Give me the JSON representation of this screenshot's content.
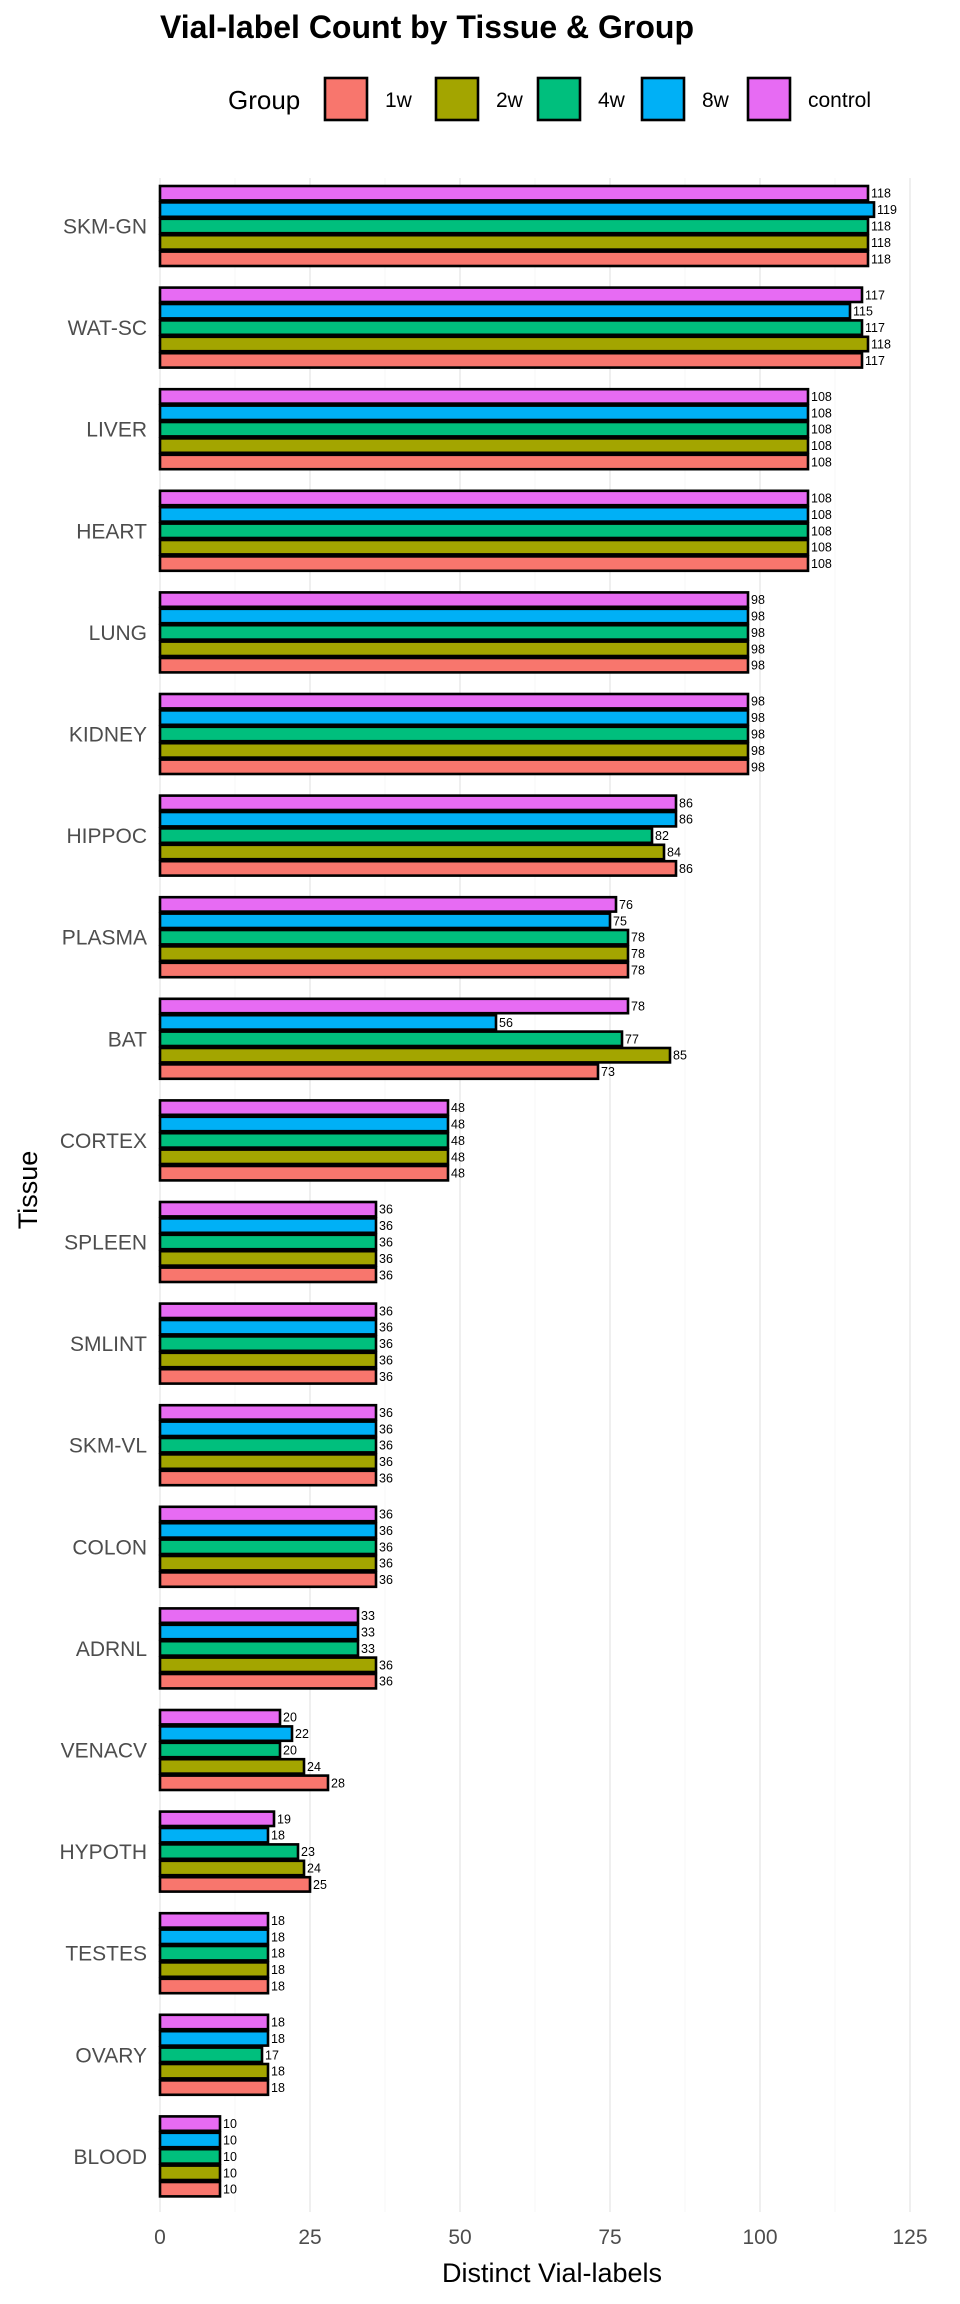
{
  "chart_data": {
    "type": "bar",
    "orientation": "horizontal",
    "title": "Vial-label Count by Tissue & Group",
    "xlabel": "Distinct Vial-labels",
    "ylabel": "Tissue",
    "xlim": [
      0,
      125
    ],
    "xticks": [
      0,
      25,
      50,
      75,
      100,
      125
    ],
    "grid": true,
    "legend": {
      "title": "Group",
      "position": "top"
    },
    "categories": [
      "SKM-GN",
      "WAT-SC",
      "LIVER",
      "HEART",
      "LUNG",
      "KIDNEY",
      "HIPPOC",
      "PLASMA",
      "BAT",
      "CORTEX",
      "SPLEEN",
      "SMLINT",
      "SKM-VL",
      "COLON",
      "ADRNL",
      "VENACV",
      "HYPOTH",
      "TESTES",
      "OVARY",
      "BLOOD"
    ],
    "series": [
      {
        "name": "1w",
        "color": "#F8766D",
        "values": [
          118,
          117,
          108,
          108,
          98,
          98,
          86,
          78,
          73,
          48,
          36,
          36,
          36,
          36,
          36,
          28,
          25,
          18,
          18,
          10
        ]
      },
      {
        "name": "2w",
        "color": "#A3A500",
        "values": [
          118,
          118,
          108,
          108,
          98,
          98,
          84,
          78,
          85,
          48,
          36,
          36,
          36,
          36,
          36,
          24,
          24,
          18,
          18,
          10
        ]
      },
      {
        "name": "4w",
        "color": "#00BF7D",
        "values": [
          118,
          117,
          108,
          108,
          98,
          98,
          82,
          78,
          77,
          48,
          36,
          36,
          36,
          36,
          33,
          20,
          23,
          18,
          17,
          10
        ]
      },
      {
        "name": "8w",
        "color": "#00B0F6",
        "values": [
          119,
          115,
          108,
          108,
          98,
          98,
          86,
          75,
          56,
          48,
          36,
          36,
          36,
          36,
          33,
          22,
          18,
          18,
          18,
          10
        ]
      },
      {
        "name": "control",
        "color": "#E76BF3",
        "values": [
          118,
          117,
          108,
          108,
          98,
          98,
          86,
          76,
          78,
          48,
          36,
          36,
          36,
          36,
          33,
          20,
          19,
          18,
          18,
          10
        ]
      }
    ]
  }
}
